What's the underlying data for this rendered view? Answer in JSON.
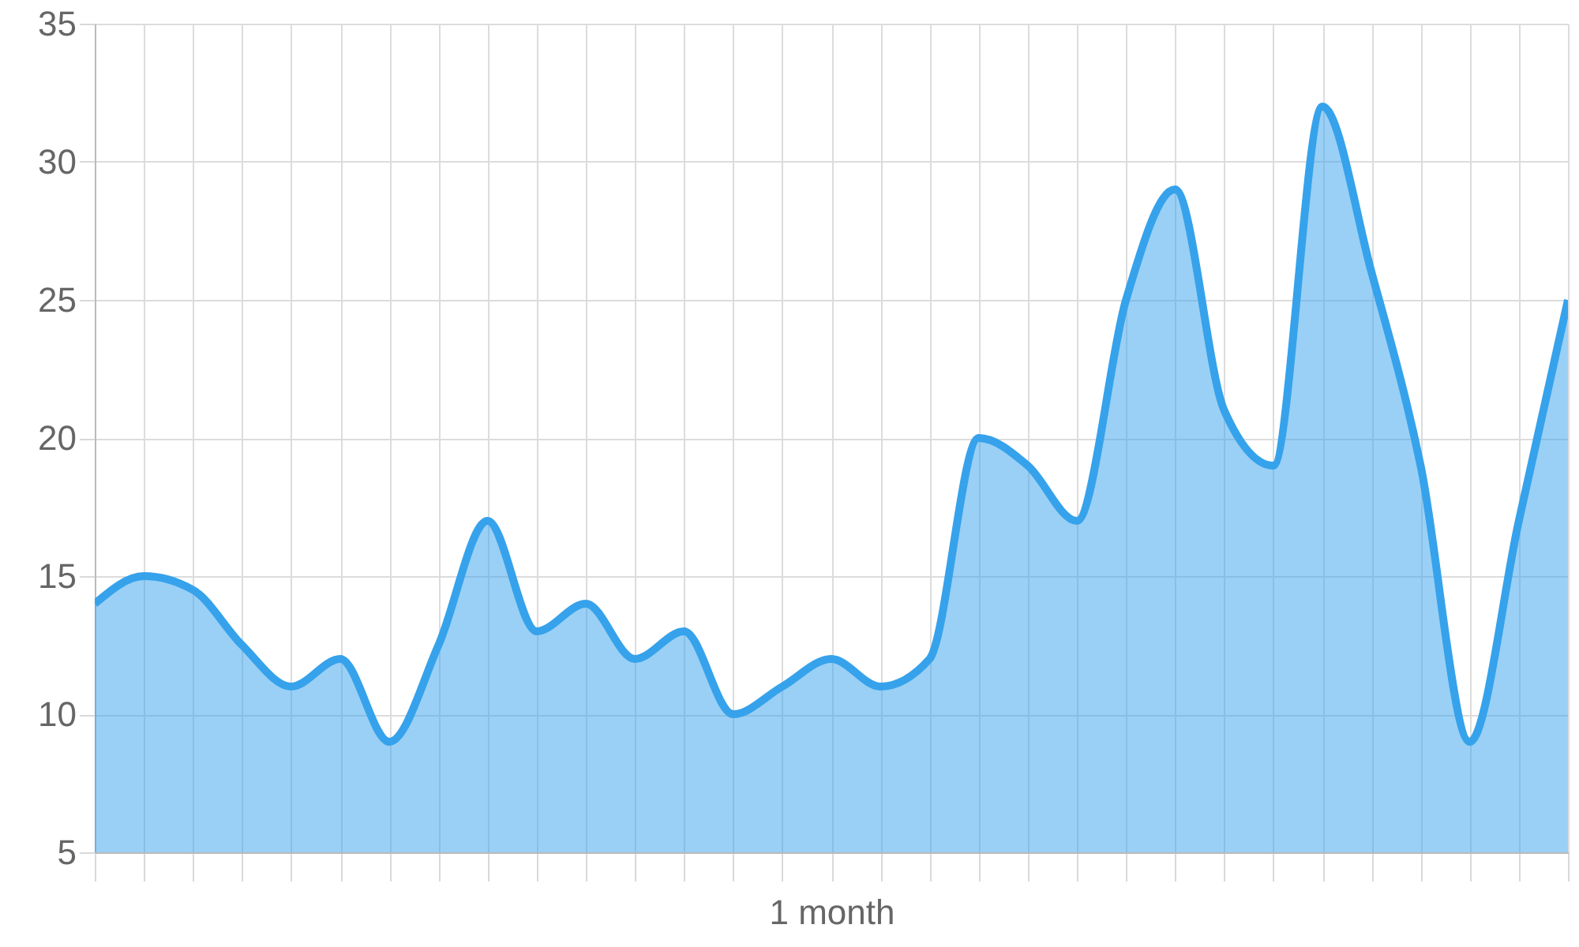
{
  "chart_data": {
    "type": "area",
    "xlabel": "1 month",
    "categories": [
      null,
      null,
      null,
      null,
      null,
      null,
      null,
      null,
      null,
      null,
      null,
      null,
      null,
      null,
      null,
      null,
      null,
      null,
      null,
      null,
      null,
      null,
      null,
      null,
      null,
      null,
      null,
      null,
      null,
      null,
      null
    ],
    "series": [
      {
        "color": "#36a2eb",
        "values": [
          14,
          15,
          14.5,
          12.5,
          11,
          12,
          9,
          12.5,
          17,
          13,
          14,
          12,
          13,
          10,
          11,
          12,
          11,
          12,
          20,
          19,
          17,
          25,
          29,
          21,
          19,
          32,
          26,
          19,
          9,
          17,
          25
        ]
      }
    ],
    "ylim": [
      5,
      35
    ],
    "yticks": [
      5,
      10,
      15,
      20,
      25,
      30,
      35
    ],
    "grid": true,
    "marker": "none",
    "line_style": "solid"
  }
}
